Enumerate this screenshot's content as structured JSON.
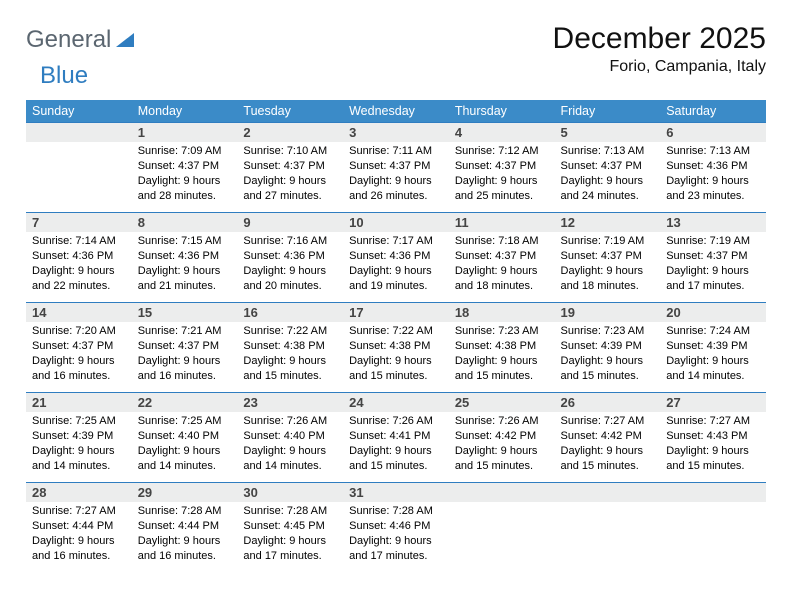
{
  "logo": {
    "word1": "General",
    "word2": "Blue"
  },
  "title": "December 2025",
  "location": "Forio, Campania, Italy",
  "colors": {
    "header_bg": "#3b8bc8",
    "header_text": "#ffffff",
    "daynum_bg": "#eceded",
    "border": "#2f7dc0",
    "logo_grey": "#5b6670",
    "logo_blue": "#2f7dc0",
    "background": "#ffffff"
  },
  "weekdays": [
    "Sunday",
    "Monday",
    "Tuesday",
    "Wednesday",
    "Thursday",
    "Friday",
    "Saturday"
  ],
  "start_offset": 1,
  "days": [
    {
      "n": 1,
      "sunrise": "7:09 AM",
      "sunset": "4:37 PM",
      "daylight": "9 hours and 28 minutes."
    },
    {
      "n": 2,
      "sunrise": "7:10 AM",
      "sunset": "4:37 PM",
      "daylight": "9 hours and 27 minutes."
    },
    {
      "n": 3,
      "sunrise": "7:11 AM",
      "sunset": "4:37 PM",
      "daylight": "9 hours and 26 minutes."
    },
    {
      "n": 4,
      "sunrise": "7:12 AM",
      "sunset": "4:37 PM",
      "daylight": "9 hours and 25 minutes."
    },
    {
      "n": 5,
      "sunrise": "7:13 AM",
      "sunset": "4:37 PM",
      "daylight": "9 hours and 24 minutes."
    },
    {
      "n": 6,
      "sunrise": "7:13 AM",
      "sunset": "4:36 PM",
      "daylight": "9 hours and 23 minutes."
    },
    {
      "n": 7,
      "sunrise": "7:14 AM",
      "sunset": "4:36 PM",
      "daylight": "9 hours and 22 minutes."
    },
    {
      "n": 8,
      "sunrise": "7:15 AM",
      "sunset": "4:36 PM",
      "daylight": "9 hours and 21 minutes."
    },
    {
      "n": 9,
      "sunrise": "7:16 AM",
      "sunset": "4:36 PM",
      "daylight": "9 hours and 20 minutes."
    },
    {
      "n": 10,
      "sunrise": "7:17 AM",
      "sunset": "4:36 PM",
      "daylight": "9 hours and 19 minutes."
    },
    {
      "n": 11,
      "sunrise": "7:18 AM",
      "sunset": "4:37 PM",
      "daylight": "9 hours and 18 minutes."
    },
    {
      "n": 12,
      "sunrise": "7:19 AM",
      "sunset": "4:37 PM",
      "daylight": "9 hours and 18 minutes."
    },
    {
      "n": 13,
      "sunrise": "7:19 AM",
      "sunset": "4:37 PM",
      "daylight": "9 hours and 17 minutes."
    },
    {
      "n": 14,
      "sunrise": "7:20 AM",
      "sunset": "4:37 PM",
      "daylight": "9 hours and 16 minutes."
    },
    {
      "n": 15,
      "sunrise": "7:21 AM",
      "sunset": "4:37 PM",
      "daylight": "9 hours and 16 minutes."
    },
    {
      "n": 16,
      "sunrise": "7:22 AM",
      "sunset": "4:38 PM",
      "daylight": "9 hours and 15 minutes."
    },
    {
      "n": 17,
      "sunrise": "7:22 AM",
      "sunset": "4:38 PM",
      "daylight": "9 hours and 15 minutes."
    },
    {
      "n": 18,
      "sunrise": "7:23 AM",
      "sunset": "4:38 PM",
      "daylight": "9 hours and 15 minutes."
    },
    {
      "n": 19,
      "sunrise": "7:23 AM",
      "sunset": "4:39 PM",
      "daylight": "9 hours and 15 minutes."
    },
    {
      "n": 20,
      "sunrise": "7:24 AM",
      "sunset": "4:39 PM",
      "daylight": "9 hours and 14 minutes."
    },
    {
      "n": 21,
      "sunrise": "7:25 AM",
      "sunset": "4:39 PM",
      "daylight": "9 hours and 14 minutes."
    },
    {
      "n": 22,
      "sunrise": "7:25 AM",
      "sunset": "4:40 PM",
      "daylight": "9 hours and 14 minutes."
    },
    {
      "n": 23,
      "sunrise": "7:26 AM",
      "sunset": "4:40 PM",
      "daylight": "9 hours and 14 minutes."
    },
    {
      "n": 24,
      "sunrise": "7:26 AM",
      "sunset": "4:41 PM",
      "daylight": "9 hours and 15 minutes."
    },
    {
      "n": 25,
      "sunrise": "7:26 AM",
      "sunset": "4:42 PM",
      "daylight": "9 hours and 15 minutes."
    },
    {
      "n": 26,
      "sunrise": "7:27 AM",
      "sunset": "4:42 PM",
      "daylight": "9 hours and 15 minutes."
    },
    {
      "n": 27,
      "sunrise": "7:27 AM",
      "sunset": "4:43 PM",
      "daylight": "9 hours and 15 minutes."
    },
    {
      "n": 28,
      "sunrise": "7:27 AM",
      "sunset": "4:44 PM",
      "daylight": "9 hours and 16 minutes."
    },
    {
      "n": 29,
      "sunrise": "7:28 AM",
      "sunset": "4:44 PM",
      "daylight": "9 hours and 16 minutes."
    },
    {
      "n": 30,
      "sunrise": "7:28 AM",
      "sunset": "4:45 PM",
      "daylight": "9 hours and 17 minutes."
    },
    {
      "n": 31,
      "sunrise": "7:28 AM",
      "sunset": "4:46 PM",
      "daylight": "9 hours and 17 minutes."
    }
  ],
  "labels": {
    "sunrise": "Sunrise:",
    "sunset": "Sunset:",
    "daylight": "Daylight:"
  },
  "typography": {
    "title_fontsize": 30,
    "location_fontsize": 16,
    "header_fontsize": 12.5,
    "cell_fontsize": 11
  }
}
